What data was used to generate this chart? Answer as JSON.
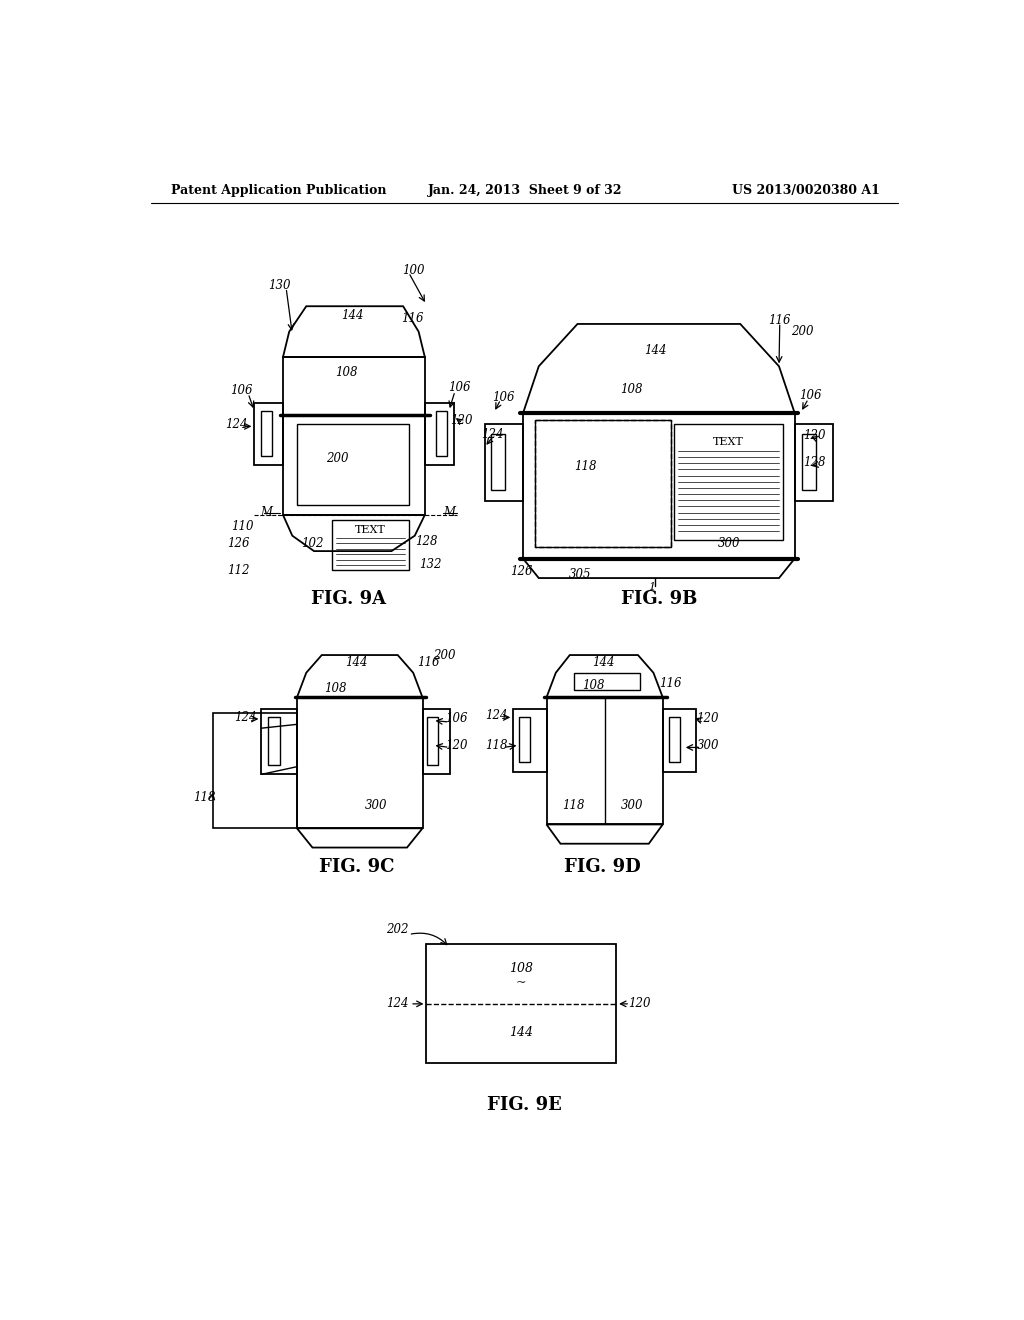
{
  "header_left": "Patent Application Publication",
  "header_center": "Jan. 24, 2013  Sheet 9 of 32",
  "header_right": "US 2013/0020380 A1",
  "bg_color": "#ffffff",
  "line_color": "#000000"
}
